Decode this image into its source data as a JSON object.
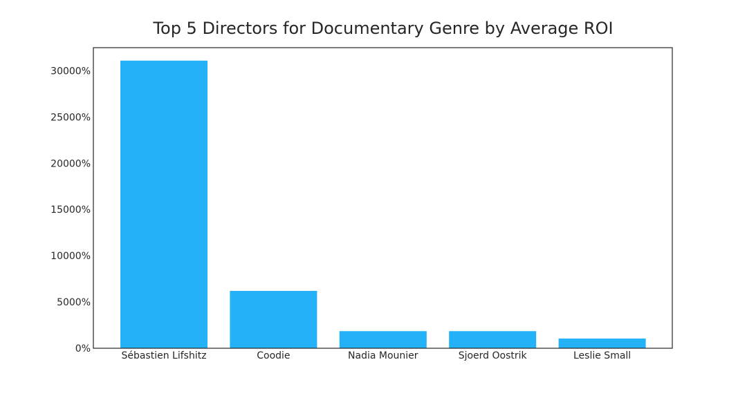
{
  "chart_data": {
    "type": "bar",
    "title": "Top 5 Directors for Documentary Genre by Average ROI",
    "xlabel": "",
    "ylabel": "",
    "categories": [
      "Sébastien Lifshitz",
      "Coodie",
      "Nadia Mounier",
      "Sjoerd Oostrik",
      "Leslie Small"
    ],
    "values": [
      31100,
      6200,
      1850,
      1850,
      1050
    ],
    "ylim": [
      0,
      32500
    ],
    "yticks": [
      0,
      5000,
      10000,
      15000,
      20000,
      25000,
      30000
    ],
    "ytick_labels": [
      "0%",
      "5000%",
      "10000%",
      "15000%",
      "20000%",
      "25000%",
      "30000%"
    ],
    "bar_color": "#23b1f8",
    "grid": false,
    "legend": "none"
  }
}
